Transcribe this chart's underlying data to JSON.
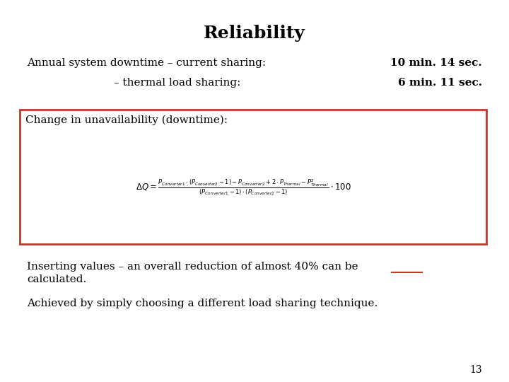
{
  "title": "Reliability",
  "line1_left": "Annual system downtime – current sharing:",
  "line1_right": "10 min. 14 sec.",
  "line2_left": "– thermal load sharing:",
  "line2_right": "6 min. 11 sec.",
  "box_label": "Change in unavailability (downtime):",
  "paragraph1_line1": "Inserting values – an overall reduction of almost 40% can be",
  "paragraph1_line2": "calculated.",
  "paragraph2": "Achieved by simply choosing a different load sharing technique.",
  "page_number": "13",
  "box_color": "#c0392b",
  "title_color": "#000000",
  "text_color": "#000000",
  "bg_color": "#ffffff",
  "underline_color": "#c0392b",
  "title_fontsize": 18,
  "body_fontsize": 11,
  "bold_fontsize": 11,
  "formula_fontsize": 8.5,
  "page_fontsize": 10
}
